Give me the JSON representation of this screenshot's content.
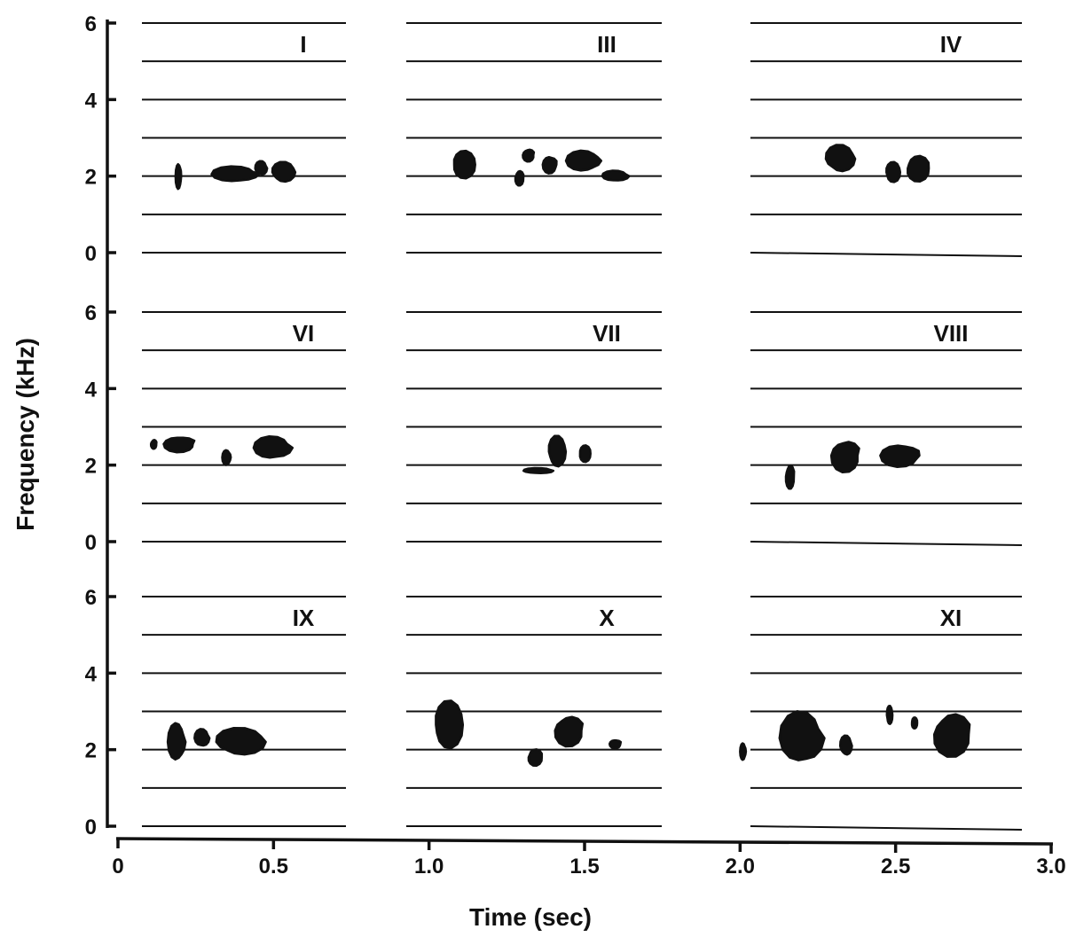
{
  "chart_data": {
    "type": "spectrogram",
    "xlabel": "Time (sec)",
    "ylabel": "Frequency  (kHz)",
    "xlim": [
      0,
      3.0
    ],
    "ylim": [
      0,
      6
    ],
    "x_ticks": [
      "0",
      "0.5",
      "1.0",
      "1.5",
      "2.0",
      "2.5",
      "3.0"
    ],
    "y_ticks": [
      "0",
      "2",
      "4",
      "6"
    ],
    "grid": true,
    "rows": [
      {
        "panels": [
          {
            "label": "I",
            "col": 0,
            "syllables": [
              {
                "t": 0.195,
                "f": 2.0,
                "dt": 0.02,
                "df": 0.75
              },
              {
                "t": 0.38,
                "f": 2.05,
                "dt": 0.16,
                "df": 0.45
              },
              {
                "t": 0.46,
                "f": 2.2,
                "dt": 0.04,
                "df": 0.4
              },
              {
                "t": 0.53,
                "f": 2.1,
                "dt": 0.08,
                "df": 0.55
              }
            ]
          },
          {
            "label": "III",
            "col": 1,
            "syllables": [
              {
                "t": 1.11,
                "f": 2.3,
                "dt": 0.08,
                "df": 0.75
              },
              {
                "t": 1.29,
                "f": 1.95,
                "dt": 0.03,
                "df": 0.4
              },
              {
                "t": 1.32,
                "f": 2.55,
                "dt": 0.04,
                "df": 0.35
              },
              {
                "t": 1.39,
                "f": 2.3,
                "dt": 0.05,
                "df": 0.5
              },
              {
                "t": 1.5,
                "f": 2.4,
                "dt": 0.12,
                "df": 0.6
              },
              {
                "t": 1.6,
                "f": 2.0,
                "dt": 0.09,
                "df": 0.3
              }
            ]
          },
          {
            "label": "IV",
            "col": 2,
            "syllables": [
              {
                "t": 2.32,
                "f": 2.45,
                "dt": 0.1,
                "df": 0.75
              },
              {
                "t": 2.49,
                "f": 2.1,
                "dt": 0.05,
                "df": 0.55
              },
              {
                "t": 2.57,
                "f": 2.2,
                "dt": 0.08,
                "df": 0.7
              }
            ]
          }
        ]
      },
      {
        "panels": [
          {
            "label": "VI",
            "col": 0,
            "syllables": [
              {
                "t": 0.115,
                "f": 2.55,
                "dt": 0.02,
                "df": 0.25
              },
              {
                "t": 0.2,
                "f": 2.55,
                "dt": 0.11,
                "df": 0.45
              },
              {
                "t": 0.35,
                "f": 2.2,
                "dt": 0.03,
                "df": 0.45
              },
              {
                "t": 0.5,
                "f": 2.45,
                "dt": 0.13,
                "df": 0.65
              }
            ]
          },
          {
            "label": "VII",
            "col": 1,
            "syllables": [
              {
                "t": 1.35,
                "f": 1.85,
                "dt": 0.1,
                "df": 0.15
              },
              {
                "t": 1.41,
                "f": 2.35,
                "dt": 0.06,
                "df": 0.85
              },
              {
                "t": 1.5,
                "f": 2.3,
                "dt": 0.04,
                "df": 0.45
              }
            ]
          },
          {
            "label": "VIII",
            "col": 2,
            "syllables": [
              {
                "t": 2.16,
                "f": 1.7,
                "dt": 0.03,
                "df": 0.65
              },
              {
                "t": 2.34,
                "f": 2.25,
                "dt": 0.1,
                "df": 0.9
              },
              {
                "t": 2.52,
                "f": 2.25,
                "dt": 0.14,
                "df": 0.65
              }
            ]
          }
        ]
      },
      {
        "panels": [
          {
            "label": "IX",
            "col": 0,
            "syllables": [
              {
                "t": 0.19,
                "f": 2.2,
                "dt": 0.06,
                "df": 1.1
              },
              {
                "t": 0.27,
                "f": 2.3,
                "dt": 0.05,
                "df": 0.5
              },
              {
                "t": 0.39,
                "f": 2.2,
                "dt": 0.17,
                "df": 0.75
              }
            ]
          },
          {
            "label": "X",
            "col": 1,
            "syllables": [
              {
                "t": 1.06,
                "f": 2.65,
                "dt": 0.1,
                "df": 1.3
              },
              {
                "t": 1.34,
                "f": 1.8,
                "dt": 0.05,
                "df": 0.45
              },
              {
                "t": 1.45,
                "f": 2.5,
                "dt": 0.1,
                "df": 0.85
              },
              {
                "t": 1.6,
                "f": 2.15,
                "dt": 0.04,
                "df": 0.25
              }
            ]
          },
          {
            "label": "XI",
            "col": 2,
            "syllables": [
              {
                "t": 2.01,
                "f": 1.95,
                "dt": 0.02,
                "df": 0.5
              },
              {
                "t": 2.2,
                "f": 2.3,
                "dt": 0.15,
                "df": 1.5
              },
              {
                "t": 2.34,
                "f": 2.1,
                "dt": 0.04,
                "df": 0.55
              },
              {
                "t": 2.48,
                "f": 2.9,
                "dt": 0.02,
                "df": 0.5
              },
              {
                "t": 2.56,
                "f": 2.7,
                "dt": 0.02,
                "df": 0.3
              },
              {
                "t": 2.68,
                "f": 2.4,
                "dt": 0.13,
                "df": 1.2
              }
            ]
          }
        ]
      }
    ]
  }
}
